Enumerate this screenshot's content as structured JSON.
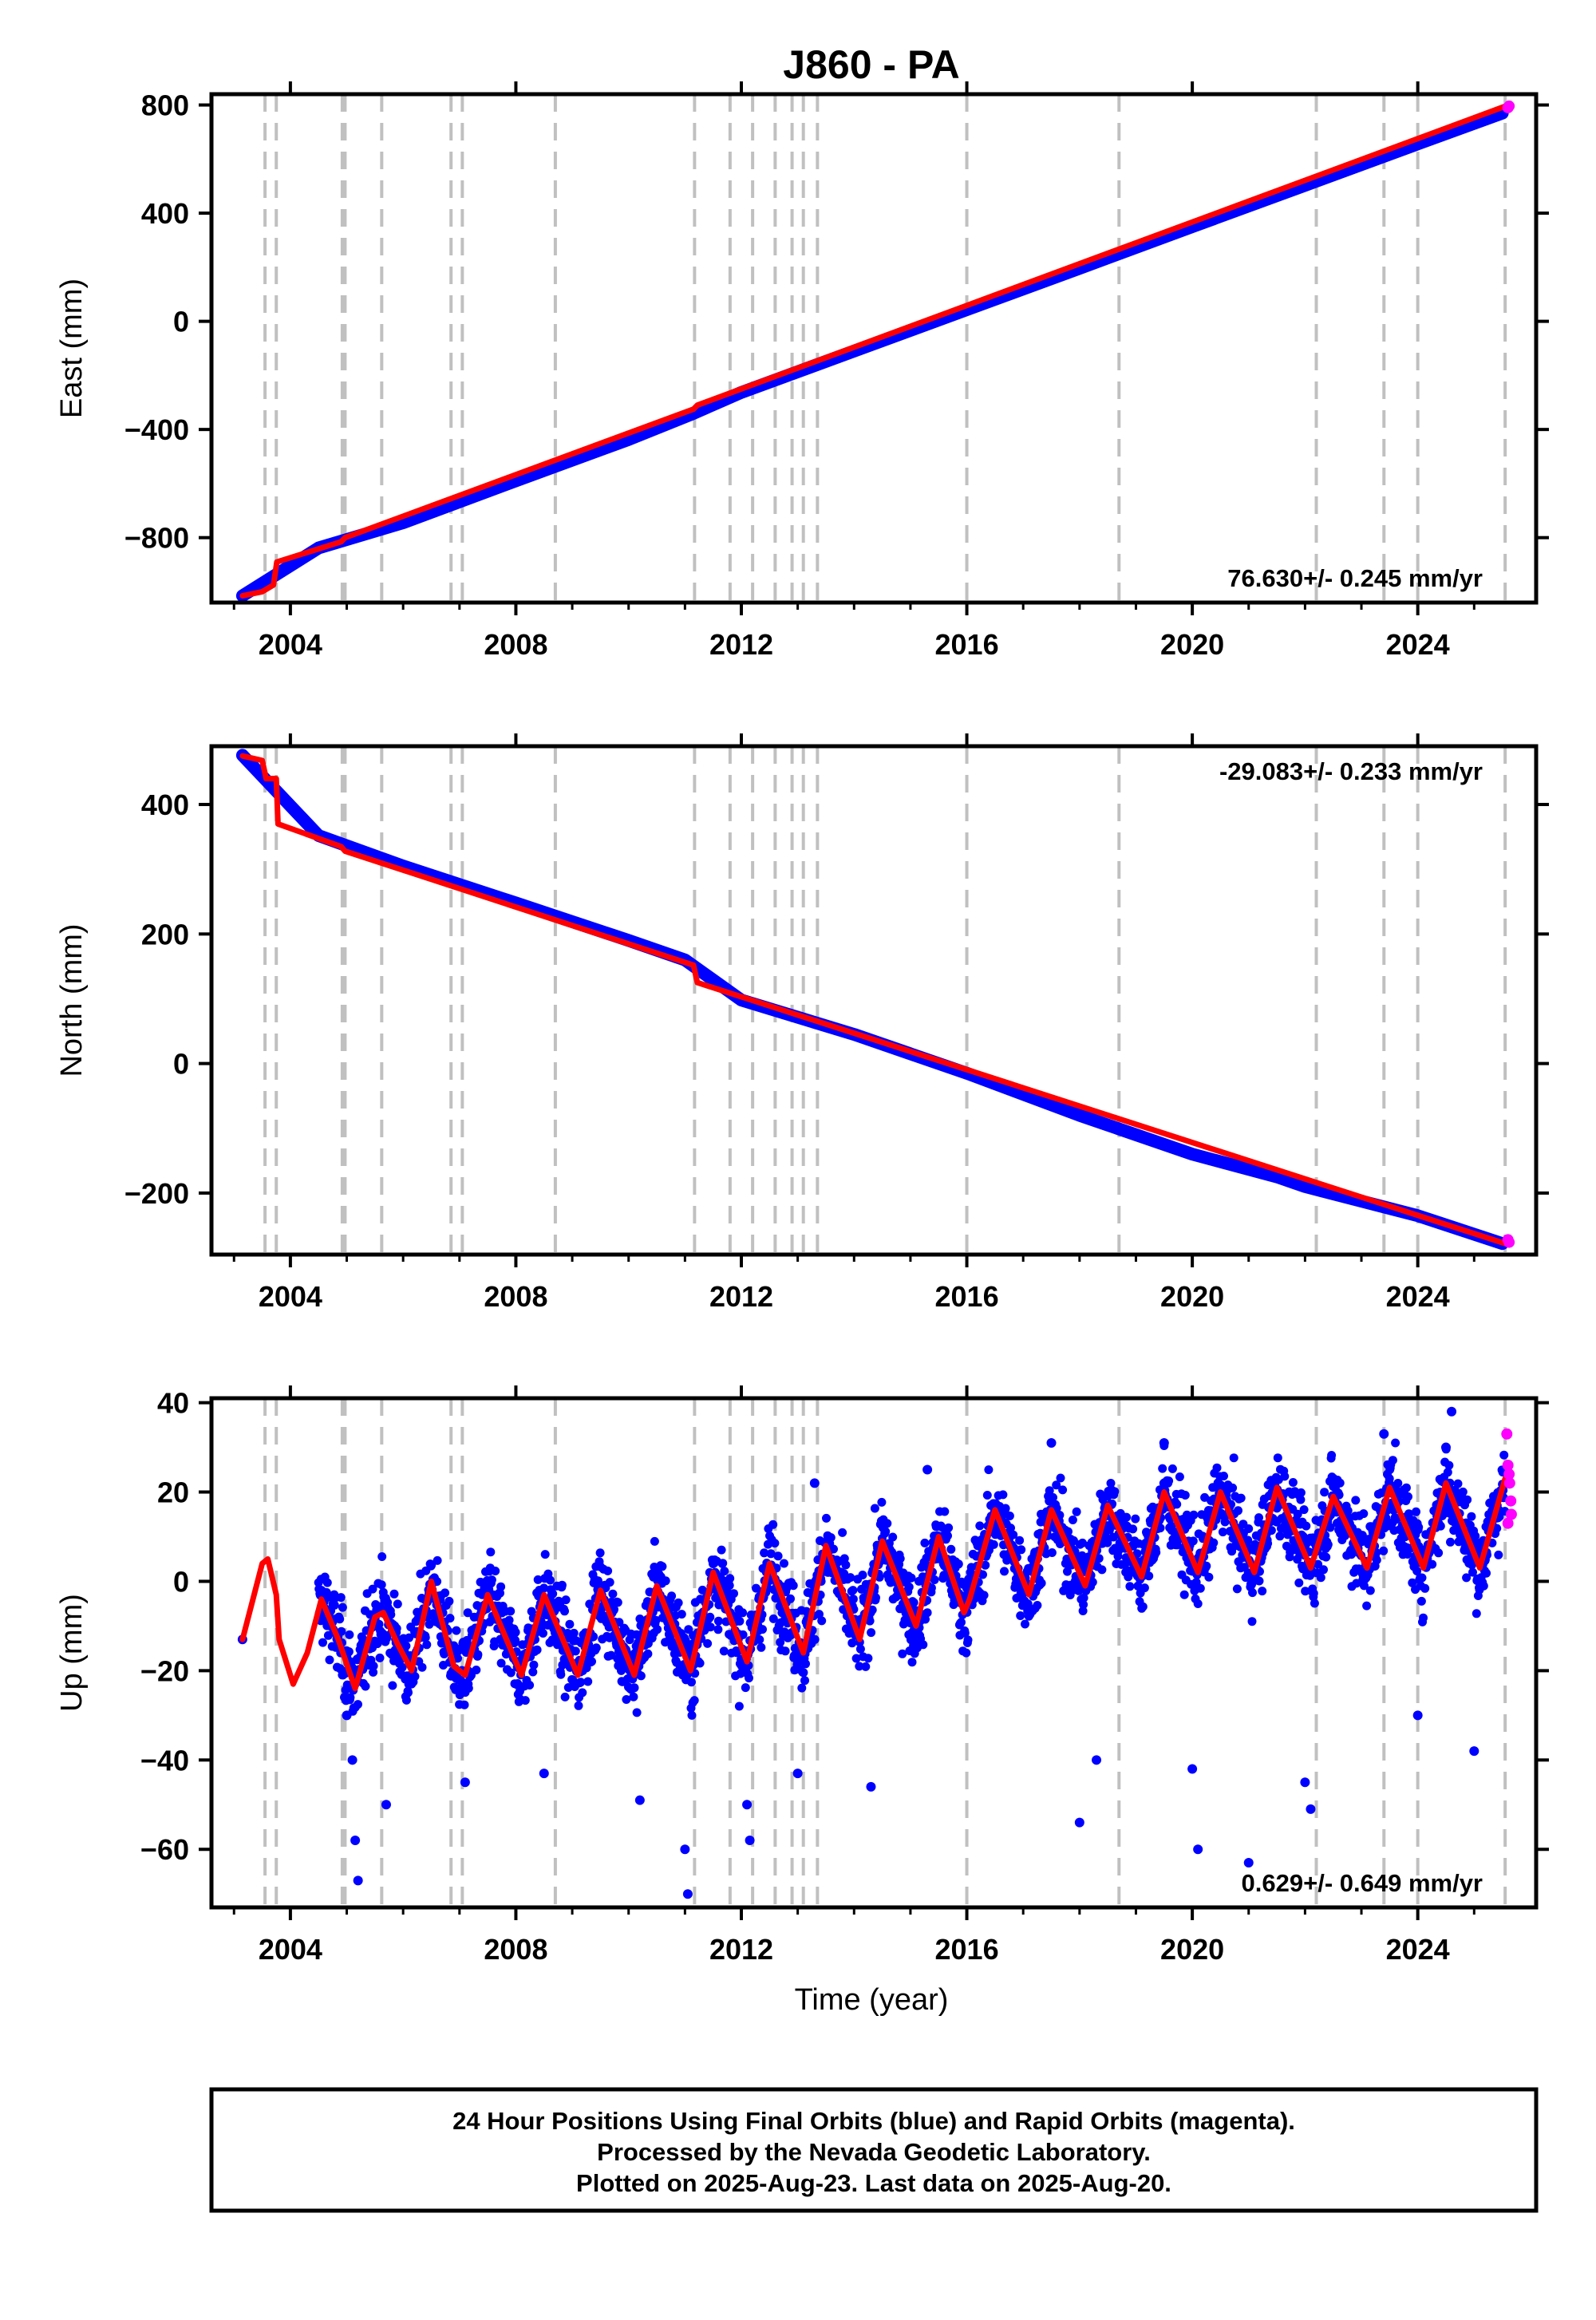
{
  "chart_data": {
    "type": "scatter",
    "title": "J860 - PA",
    "x_axis": {
      "label": "Time (year)",
      "range": [
        2002.6,
        2026.1
      ],
      "ticks": [
        2004,
        2008,
        2012,
        2016,
        2020,
        2024
      ],
      "tick_labels": [
        "2004",
        "2008",
        "2012",
        "2016",
        "2020",
        "2024"
      ]
    },
    "colors": {
      "final_orbits": "#0000ff",
      "rapid_orbits": "#ff00ff",
      "model": "#ff0000",
      "event_lines": "#c0c0c0"
    },
    "event_lines": [
      2003.55,
      2003.75,
      2004.92,
      2004.97,
      2005.62,
      2006.85,
      2007.05,
      2008.7,
      2011.17,
      2011.8,
      2012.2,
      2012.6,
      2012.9,
      2013.1,
      2013.35,
      2016.0,
      2018.7,
      2022.2,
      2023.4,
      2024.0,
      2025.55
    ],
    "panels": [
      {
        "id": "east",
        "ylabel": "East (mm)",
        "ylim": [
          -1040,
          840
        ],
        "ticks": [
          800,
          400,
          0,
          -400,
          -800
        ],
        "tick_labels": [
          "800",
          "400",
          "0",
          "−400",
          "−800"
        ],
        "rate": "76.630+/- 0.245 mm/yr",
        "rate_position": "bottom-right",
        "model_line": [
          [
            2003.15,
            -1015
          ],
          [
            2003.5,
            -1000
          ],
          [
            2003.7,
            -975
          ],
          [
            2003.76,
            -890
          ],
          [
            2004.9,
            -815
          ],
          [
            2004.97,
            -800
          ],
          [
            2011.15,
            -325
          ],
          [
            2011.22,
            -310
          ],
          [
            2025.55,
            795
          ]
        ],
        "final_points": [
          [
            2003.15,
            -1015
          ],
          [
            2004.5,
            -838
          ],
          [
            2006.0,
            -745
          ],
          [
            2008.0,
            -590
          ],
          [
            2010.0,
            -437
          ],
          [
            2011.1,
            -345
          ],
          [
            2012.0,
            -263
          ],
          [
            2014.0,
            -110
          ],
          [
            2016.0,
            43
          ],
          [
            2018.0,
            196
          ],
          [
            2020.0,
            350
          ],
          [
            2022.0,
            503
          ],
          [
            2024.0,
            656
          ],
          [
            2025.5,
            770
          ]
        ],
        "rapid_points": [
          [
            2025.6,
            790
          ],
          [
            2025.62,
            796
          ]
        ]
      },
      {
        "id": "north",
        "ylabel": "North (mm)",
        "ylim": [
          -295,
          490
        ],
        "ticks": [
          400,
          200,
          0,
          -200
        ],
        "tick_labels": [
          "400",
          "200",
          "0",
          "−200"
        ],
        "rate": "-29.083+/- 0.233 mm/yr",
        "rate_position": "top-right",
        "model_line": [
          [
            2003.15,
            475
          ],
          [
            2003.5,
            468
          ],
          [
            2003.57,
            440
          ],
          [
            2003.75,
            440
          ],
          [
            2003.78,
            370
          ],
          [
            2004.9,
            335
          ],
          [
            2004.97,
            328
          ],
          [
            2011.15,
            152
          ],
          [
            2011.22,
            125
          ],
          [
            2025.55,
            -278
          ]
        ],
        "final_points": [
          [
            2003.15,
            476
          ],
          [
            2004.5,
            352
          ],
          [
            2006.0,
            305
          ],
          [
            2008.0,
            248
          ],
          [
            2010.0,
            190
          ],
          [
            2011.0,
            160
          ],
          [
            2012.0,
            98
          ],
          [
            2014.0,
            45
          ],
          [
            2016.0,
            -15
          ],
          [
            2018.0,
            -80
          ],
          [
            2020.0,
            -140
          ],
          [
            2021.5,
            -175
          ],
          [
            2022.0,
            -190
          ],
          [
            2024.0,
            -235
          ],
          [
            2025.5,
            -278
          ]
        ],
        "rapid_points": [
          [
            2025.6,
            -272
          ],
          [
            2025.62,
            -276
          ]
        ]
      },
      {
        "id": "up",
        "ylabel": "Up (mm)",
        "ylim": [
          -73,
          41
        ],
        "ticks": [
          40,
          20,
          0,
          -20,
          -40,
          -60
        ],
        "tick_labels": [
          "40",
          "20",
          "0",
          "−20",
          "−40",
          "−60"
        ],
        "rate": "0.629+/- 0.649 mm/yr",
        "rate_position": "bottom-right",
        "model_line": [
          [
            2003.15,
            -13
          ],
          [
            2003.5,
            4
          ],
          [
            2003.6,
            5
          ],
          [
            2003.75,
            -3
          ],
          [
            2003.8,
            -13
          ],
          [
            2004.05,
            -23
          ],
          [
            2004.3,
            -16
          ],
          [
            2004.55,
            -4
          ],
          [
            2004.85,
            -13
          ],
          [
            2005.15,
            -24
          ],
          [
            2005.5,
            -8
          ],
          [
            2005.65,
            -7
          ],
          [
            2005.9,
            -14
          ],
          [
            2006.15,
            -20
          ],
          [
            2006.5,
            0
          ],
          [
            2006.9,
            -19
          ],
          [
            2007.1,
            -21
          ],
          [
            2007.5,
            -3
          ],
          [
            2008.1,
            -21
          ],
          [
            2008.5,
            -3
          ],
          [
            2009.1,
            -21
          ],
          [
            2009.5,
            -2
          ],
          [
            2010.1,
            -21
          ],
          [
            2010.5,
            -1
          ],
          [
            2011.1,
            -20
          ],
          [
            2011.5,
            2
          ],
          [
            2012.1,
            -18
          ],
          [
            2012.5,
            4
          ],
          [
            2013.1,
            -16
          ],
          [
            2013.5,
            8
          ],
          [
            2014.1,
            -13
          ],
          [
            2014.5,
            9
          ],
          [
            2015.1,
            -10
          ],
          [
            2015.5,
            10
          ],
          [
            2015.95,
            -7
          ],
          [
            2016.05,
            -4
          ],
          [
            2016.5,
            16
          ],
          [
            2017.1,
            -3
          ],
          [
            2017.5,
            16
          ],
          [
            2018.1,
            -1
          ],
          [
            2018.5,
            17
          ],
          [
            2019.1,
            1
          ],
          [
            2019.5,
            20
          ],
          [
            2020.1,
            2
          ],
          [
            2020.5,
            20
          ],
          [
            2021.1,
            2
          ],
          [
            2021.5,
            21
          ],
          [
            2022.1,
            3
          ],
          [
            2022.5,
            19
          ],
          [
            2023.1,
            3
          ],
          [
            2023.5,
            21
          ],
          [
            2024.1,
            3
          ],
          [
            2024.5,
            22
          ],
          [
            2025.1,
            3
          ],
          [
            2025.55,
            23
          ]
        ],
        "final_points": [
          [
            2003.15,
            -13
          ],
          [
            2005.0,
            -30
          ],
          [
            2005.1,
            -40
          ],
          [
            2005.15,
            -58
          ],
          [
            2005.2,
            -67
          ],
          [
            2005.7,
            -50
          ],
          [
            2007.1,
            -45
          ],
          [
            2008.5,
            -43
          ],
          [
            2010.2,
            -49
          ],
          [
            2011.0,
            -60
          ],
          [
            2011.05,
            -70
          ],
          [
            2012.1,
            -50
          ],
          [
            2012.15,
            -58
          ],
          [
            2013.0,
            -43
          ],
          [
            2014.3,
            -46
          ],
          [
            2018.0,
            -54
          ],
          [
            2018.3,
            -40
          ],
          [
            2020.0,
            -42
          ],
          [
            2020.1,
            -60
          ],
          [
            2021.0,
            -63
          ],
          [
            2022.0,
            -45
          ],
          [
            2022.1,
            -51
          ],
          [
            2024.0,
            -30
          ],
          [
            2025.0,
            -38
          ],
          [
            2024.6,
            38
          ],
          [
            2024.5,
            30
          ],
          [
            2019.5,
            31
          ],
          [
            2017.5,
            31
          ],
          [
            2013.3,
            22
          ],
          [
            2015.3,
            25
          ],
          [
            2022.5,
            23
          ],
          [
            2023.4,
            33
          ]
        ],
        "rapid_points": [
          [
            2025.58,
            33
          ],
          [
            2025.6,
            26
          ],
          [
            2025.62,
            24
          ],
          [
            2025.63,
            22
          ],
          [
            2025.65,
            18
          ],
          [
            2025.66,
            15
          ],
          [
            2025.6,
            13
          ]
        ]
      }
    ]
  },
  "footer": {
    "line1": "24 Hour Positions Using Final Orbits (blue) and Rapid Orbits (magenta).",
    "line2": "Processed by the Nevada Geodetic Laboratory.",
    "line3": "Plotted on 2025-Aug-23. Last data on 2025-Aug-20."
  }
}
